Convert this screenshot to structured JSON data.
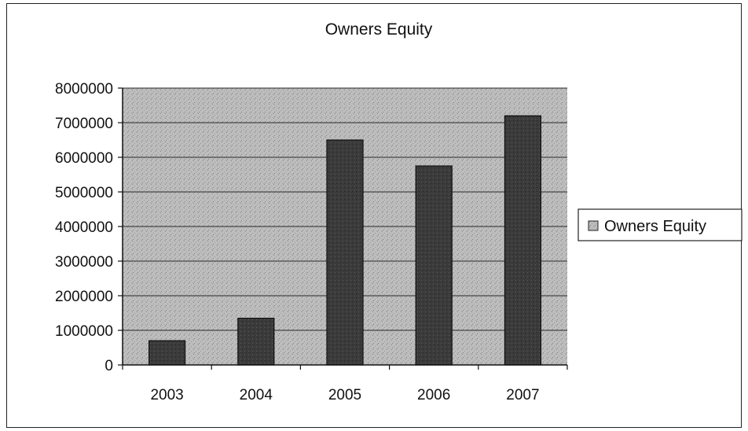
{
  "chart_data": {
    "type": "bar",
    "title": "Owners Equity",
    "xlabel": "",
    "ylabel": "",
    "categories": [
      "2003",
      "2004",
      "2005",
      "2006",
      "2007"
    ],
    "series": [
      {
        "name": "Owners Equity",
        "values": [
          700000,
          1350000,
          6500000,
          5750000,
          7200000
        ]
      }
    ],
    "ylim": [
      0,
      8000000
    ],
    "yticks": [
      "0",
      "1000000",
      "2000000",
      "3000000",
      "4000000",
      "5000000",
      "6000000",
      "7000000",
      "8000000"
    ],
    "grid": true,
    "legend": "right",
    "colors": {
      "plot_bg": "#b9b9b9",
      "bar": "#3a3a3a",
      "grid": "#2a2a2a"
    }
  }
}
